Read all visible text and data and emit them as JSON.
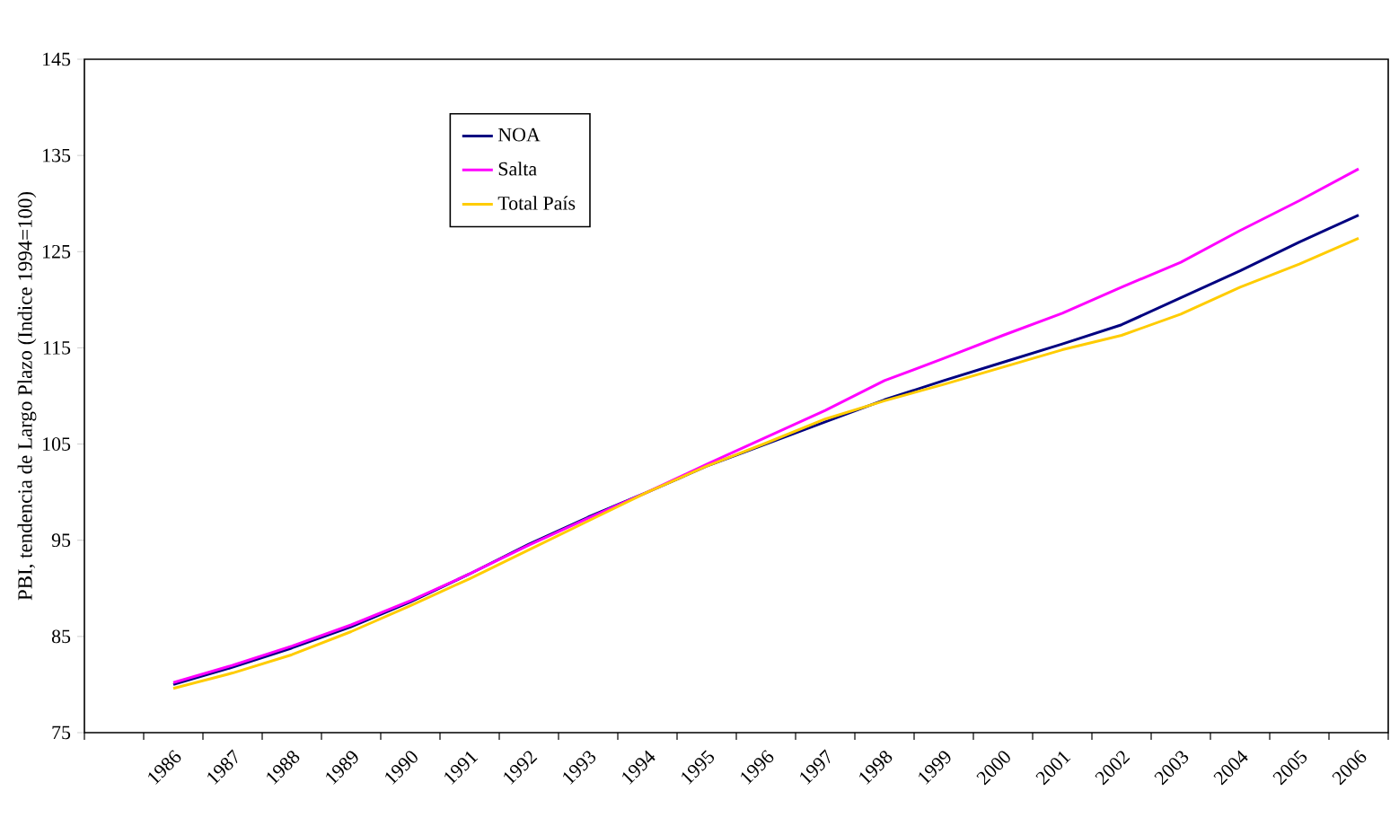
{
  "chart_data": {
    "type": "line",
    "ylabel": "PBI, tendencia de Largo Plazo (Indice 1994=100)",
    "categories": [
      "1986",
      "1987",
      "1988",
      "1989",
      "1990",
      "1991",
      "1992",
      "1993",
      "1994",
      "1995",
      "1996",
      "1997",
      "1998",
      "1999",
      "2000",
      "2001",
      "2002",
      "2003",
      "2004",
      "2005",
      "2006"
    ],
    "series": [
      {
        "name": "NOA",
        "color": "#000080",
        "values": [
          80.0,
          81.8,
          83.8,
          86.0,
          88.6,
          91.5,
          94.6,
          97.4,
          100.0,
          102.7,
          105.0,
          107.3,
          109.6,
          111.6,
          113.5,
          115.4,
          117.4,
          120.2,
          123.0,
          126.0,
          128.8
        ]
      },
      {
        "name": "Salta",
        "color": "#ff00ff",
        "values": [
          80.2,
          82.0,
          84.0,
          86.2,
          88.7,
          91.5,
          94.5,
          97.3,
          100.0,
          102.9,
          105.7,
          108.5,
          111.6,
          113.9,
          116.3,
          118.6,
          121.3,
          123.9,
          127.2,
          130.3,
          133.6
        ]
      },
      {
        "name": "Total País",
        "color": "#ffcc00",
        "values": [
          79.6,
          81.2,
          83.1,
          85.5,
          88.2,
          91.0,
          94.0,
          97.0,
          100.0,
          102.7,
          105.1,
          107.6,
          109.5,
          111.2,
          113.0,
          114.8,
          116.3,
          118.5,
          121.3,
          123.7,
          126.4
        ]
      }
    ],
    "ylim": [
      75,
      145
    ],
    "yticks": [
      75,
      85,
      95,
      105,
      115,
      125,
      135,
      145
    ],
    "legend": "top left",
    "grid": false,
    "marker": "none",
    "line_style": "solid"
  }
}
